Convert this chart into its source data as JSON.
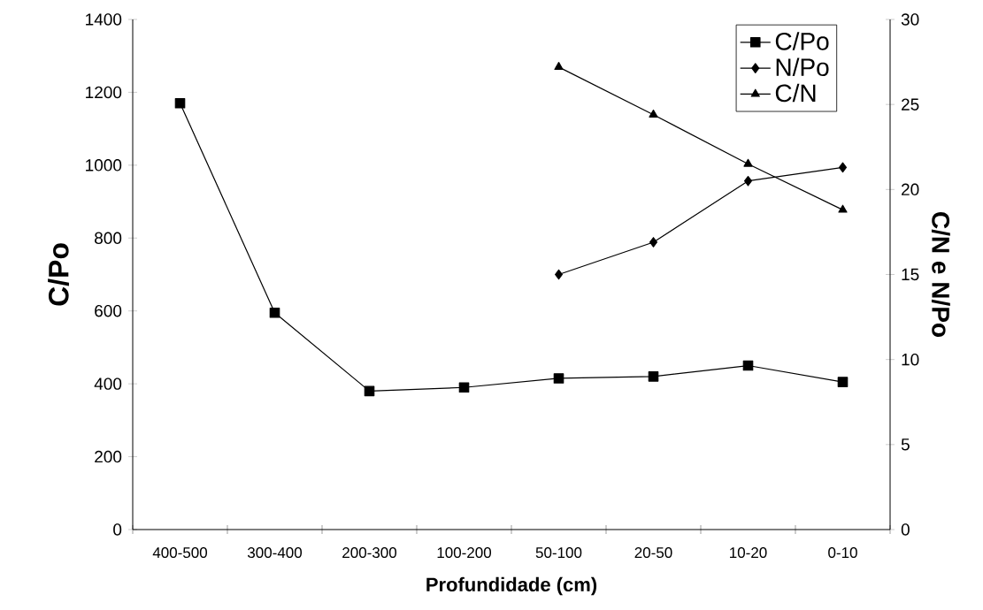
{
  "chart_data": {
    "type": "line",
    "xlabel": "Profundidade (cm)",
    "ylabel": "C/Po",
    "y2label": "C/N e N/Po",
    "categories": [
      "400-500",
      "300-400",
      "200-300",
      "100-200",
      "50-100",
      "20-50",
      "10-20",
      "0-10"
    ],
    "series": [
      {
        "name": "C/Po",
        "color": "#000000",
        "marker": "square",
        "values": [
          1170,
          595,
          380,
          390,
          415,
          420,
          450,
          405
        ]
      },
      {
        "name": "N/Po",
        "color": "#000000",
        "marker": "diamond",
        "axis": "y2",
        "values": [
          null,
          null,
          null,
          null,
          15.0,
          16.9,
          20.5,
          21.3
        ]
      },
      {
        "name": "C/N",
        "color": "#000000",
        "marker": "triangle",
        "axis": "y2",
        "values": [
          null,
          null,
          null,
          null,
          27.2,
          24.4,
          21.5,
          18.8
        ]
      }
    ],
    "ylim": [
      0,
      1400
    ],
    "yticks": [
      0,
      200,
      400,
      600,
      800,
      1000,
      1200,
      1400
    ],
    "y2lim": [
      0,
      30
    ],
    "y2ticks": [
      0,
      5,
      10,
      15,
      20,
      25,
      30
    ],
    "legend": "top right"
  }
}
